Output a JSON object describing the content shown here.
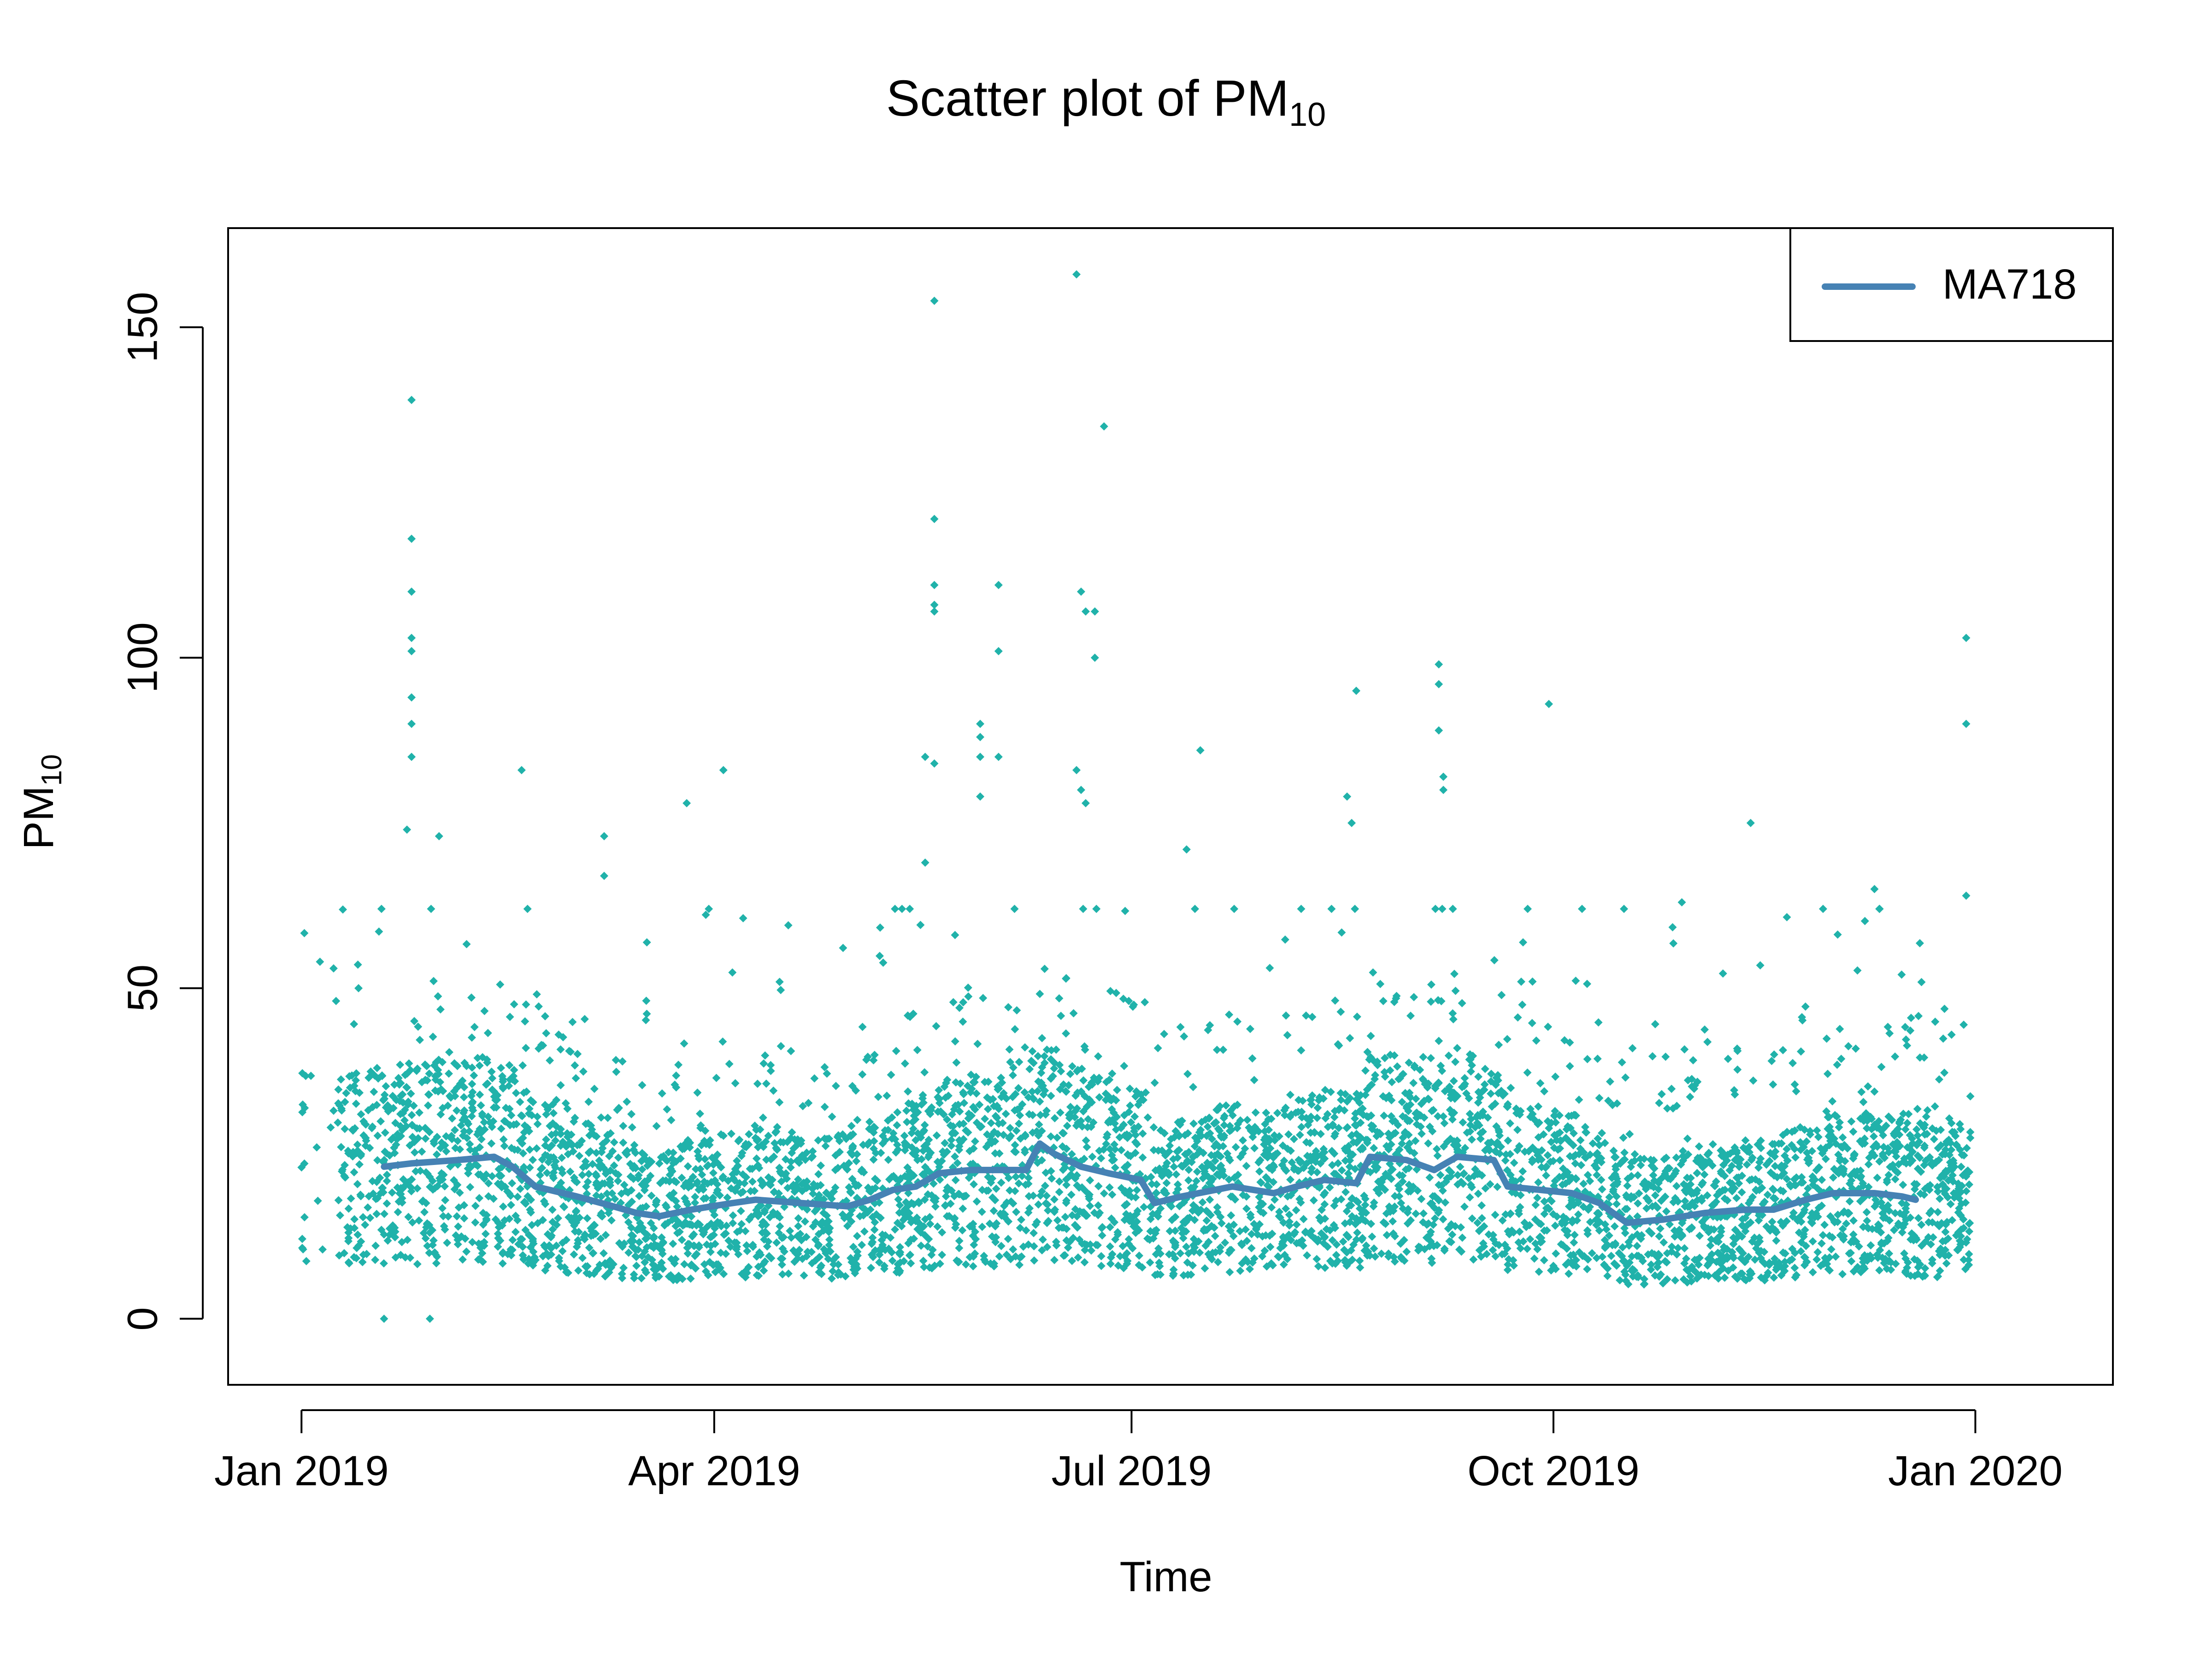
{
  "chart_data": {
    "type": "scatter",
    "title_main": "Scatter plot of PM",
    "title_sub": "10",
    "xlabel": "Time",
    "ylabel_main": "PM",
    "ylabel_sub": "10",
    "x_range": [
      "2018-12-16",
      "2020-01-31"
    ],
    "ylim": [
      -10,
      165
    ],
    "x_ticks": [
      {
        "date": "2019-01-01",
        "label": "Jan 2019"
      },
      {
        "date": "2019-04-01",
        "label": "Apr 2019"
      },
      {
        "date": "2019-07-01",
        "label": "Jul 2019"
      },
      {
        "date": "2019-10-01",
        "label": "Oct 2019"
      },
      {
        "date": "2020-01-01",
        "label": "Jan 2020"
      }
    ],
    "y_ticks": [
      0,
      50,
      100,
      150
    ],
    "grid": false,
    "legend": {
      "position": "top-right",
      "entries": [
        {
          "name": "MA718",
          "color": "#4682B4"
        }
      ]
    },
    "colors": {
      "points": "#20B2AA",
      "line": "#4682B4"
    },
    "notable_points": [
      {
        "x": "2019-01-25",
        "y": 139
      },
      {
        "x": "2019-01-25",
        "y": 118
      },
      {
        "x": "2019-01-25",
        "y": 110
      },
      {
        "x": "2019-01-25",
        "y": 103
      },
      {
        "x": "2019-01-25",
        "y": 101
      },
      {
        "x": "2019-01-25",
        "y": 94
      },
      {
        "x": "2019-01-25",
        "y": 90
      },
      {
        "x": "2019-01-25",
        "y": 85
      },
      {
        "x": "2019-01-24",
        "y": 74
      },
      {
        "x": "2019-01-31",
        "y": 73
      },
      {
        "x": "2019-02-18",
        "y": 83
      },
      {
        "x": "2019-03-08",
        "y": 73
      },
      {
        "x": "2019-03-08",
        "y": 67
      },
      {
        "x": "2019-03-26",
        "y": 78
      },
      {
        "x": "2019-04-03",
        "y": 83
      },
      {
        "x": "2019-05-17",
        "y": 85
      },
      {
        "x": "2019-05-19",
        "y": 154
      },
      {
        "x": "2019-05-19",
        "y": 121
      },
      {
        "x": "2019-05-19",
        "y": 111
      },
      {
        "x": "2019-05-19",
        "y": 108
      },
      {
        "x": "2019-05-19",
        "y": 107
      },
      {
        "x": "2019-05-19",
        "y": 84
      },
      {
        "x": "2019-05-17",
        "y": 69
      },
      {
        "x": "2019-05-29",
        "y": 90
      },
      {
        "x": "2019-05-29",
        "y": 88
      },
      {
        "x": "2019-05-29",
        "y": 85
      },
      {
        "x": "2019-05-29",
        "y": 79
      },
      {
        "x": "2019-06-02",
        "y": 111
      },
      {
        "x": "2019-06-02",
        "y": 101
      },
      {
        "x": "2019-06-02",
        "y": 85
      },
      {
        "x": "2019-06-19",
        "y": 158
      },
      {
        "x": "2019-06-25",
        "y": 135
      },
      {
        "x": "2019-06-20",
        "y": 110
      },
      {
        "x": "2019-06-21",
        "y": 107
      },
      {
        "x": "2019-06-23",
        "y": 107
      },
      {
        "x": "2019-06-23",
        "y": 100
      },
      {
        "x": "2019-06-19",
        "y": 83
      },
      {
        "x": "2019-06-20",
        "y": 80
      },
      {
        "x": "2019-06-21",
        "y": 78
      },
      {
        "x": "2019-07-16",
        "y": 86
      },
      {
        "x": "2019-07-13",
        "y": 71
      },
      {
        "x": "2019-08-19",
        "y": 95
      },
      {
        "x": "2019-08-17",
        "y": 79
      },
      {
        "x": "2019-08-18",
        "y": 75
      },
      {
        "x": "2019-09-06",
        "y": 99
      },
      {
        "x": "2019-09-06",
        "y": 96
      },
      {
        "x": "2019-09-06",
        "y": 89
      },
      {
        "x": "2019-09-07",
        "y": 82
      },
      {
        "x": "2019-09-07",
        "y": 80
      },
      {
        "x": "2019-09-30",
        "y": 93
      },
      {
        "x": "2019-10-29",
        "y": 63
      },
      {
        "x": "2019-11-13",
        "y": 75
      },
      {
        "x": "2019-12-10",
        "y": 65
      },
      {
        "x": "2019-12-30",
        "y": 103
      },
      {
        "x": "2019-12-30",
        "y": 90
      },
      {
        "x": "2019-12-30",
        "y": 64
      },
      {
        "x": "2019-01-08",
        "y": 53
      },
      {
        "x": "2019-01-19",
        "y": 0
      },
      {
        "x": "2019-01-29",
        "y": 0
      }
    ],
    "moving_average": [
      {
        "x": "2019-01-19",
        "y": 23
      },
      {
        "x": "2019-01-25",
        "y": 23.5
      },
      {
        "x": "2019-02-04",
        "y": 24
      },
      {
        "x": "2019-02-12",
        "y": 24.5
      },
      {
        "x": "2019-02-16",
        "y": 23
      },
      {
        "x": "2019-02-21",
        "y": 20
      },
      {
        "x": "2019-03-02",
        "y": 18.5
      },
      {
        "x": "2019-03-10",
        "y": 17
      },
      {
        "x": "2019-03-15",
        "y": 16
      },
      {
        "x": "2019-03-20",
        "y": 15.5
      },
      {
        "x": "2019-03-27",
        "y": 16.5
      },
      {
        "x": "2019-04-05",
        "y": 17.5
      },
      {
        "x": "2019-04-10",
        "y": 18
      },
      {
        "x": "2019-04-20",
        "y": 17.5
      },
      {
        "x": "2019-04-30",
        "y": 17
      },
      {
        "x": "2019-05-05",
        "y": 18
      },
      {
        "x": "2019-05-10",
        "y": 19.5
      },
      {
        "x": "2019-05-15",
        "y": 20
      },
      {
        "x": "2019-05-20",
        "y": 22
      },
      {
        "x": "2019-05-27",
        "y": 22.5
      },
      {
        "x": "2019-06-03",
        "y": 22.5
      },
      {
        "x": "2019-06-08",
        "y": 22.5
      },
      {
        "x": "2019-06-11",
        "y": 26.5
      },
      {
        "x": "2019-06-14",
        "y": 25
      },
      {
        "x": "2019-06-20",
        "y": 23
      },
      {
        "x": "2019-06-26",
        "y": 22
      },
      {
        "x": "2019-07-03",
        "y": 21
      },
      {
        "x": "2019-07-06",
        "y": 17.5
      },
      {
        "x": "2019-07-12",
        "y": 18.5
      },
      {
        "x": "2019-07-23",
        "y": 20
      },
      {
        "x": "2019-08-01",
        "y": 19
      },
      {
        "x": "2019-08-06",
        "y": 20
      },
      {
        "x": "2019-08-12",
        "y": 21
      },
      {
        "x": "2019-08-19",
        "y": 20.5
      },
      {
        "x": "2019-08-22",
        "y": 24.5
      },
      {
        "x": "2019-08-30",
        "y": 24
      },
      {
        "x": "2019-09-05",
        "y": 22.5
      },
      {
        "x": "2019-09-10",
        "y": 24.5
      },
      {
        "x": "2019-09-18",
        "y": 24
      },
      {
        "x": "2019-09-21",
        "y": 20
      },
      {
        "x": "2019-09-28",
        "y": 19.5
      },
      {
        "x": "2019-10-05",
        "y": 19
      },
      {
        "x": "2019-10-11",
        "y": 17.5
      },
      {
        "x": "2019-10-17",
        "y": 14.5
      },
      {
        "x": "2019-10-25",
        "y": 15
      },
      {
        "x": "2019-11-03",
        "y": 16
      },
      {
        "x": "2019-11-12",
        "y": 16.5
      },
      {
        "x": "2019-11-18",
        "y": 16.5
      },
      {
        "x": "2019-11-25",
        "y": 18
      },
      {
        "x": "2019-12-01",
        "y": 19
      },
      {
        "x": "2019-12-10",
        "y": 19
      },
      {
        "x": "2019-12-16",
        "y": 18.5
      },
      {
        "x": "2019-12-19",
        "y": 18
      }
    ]
  }
}
